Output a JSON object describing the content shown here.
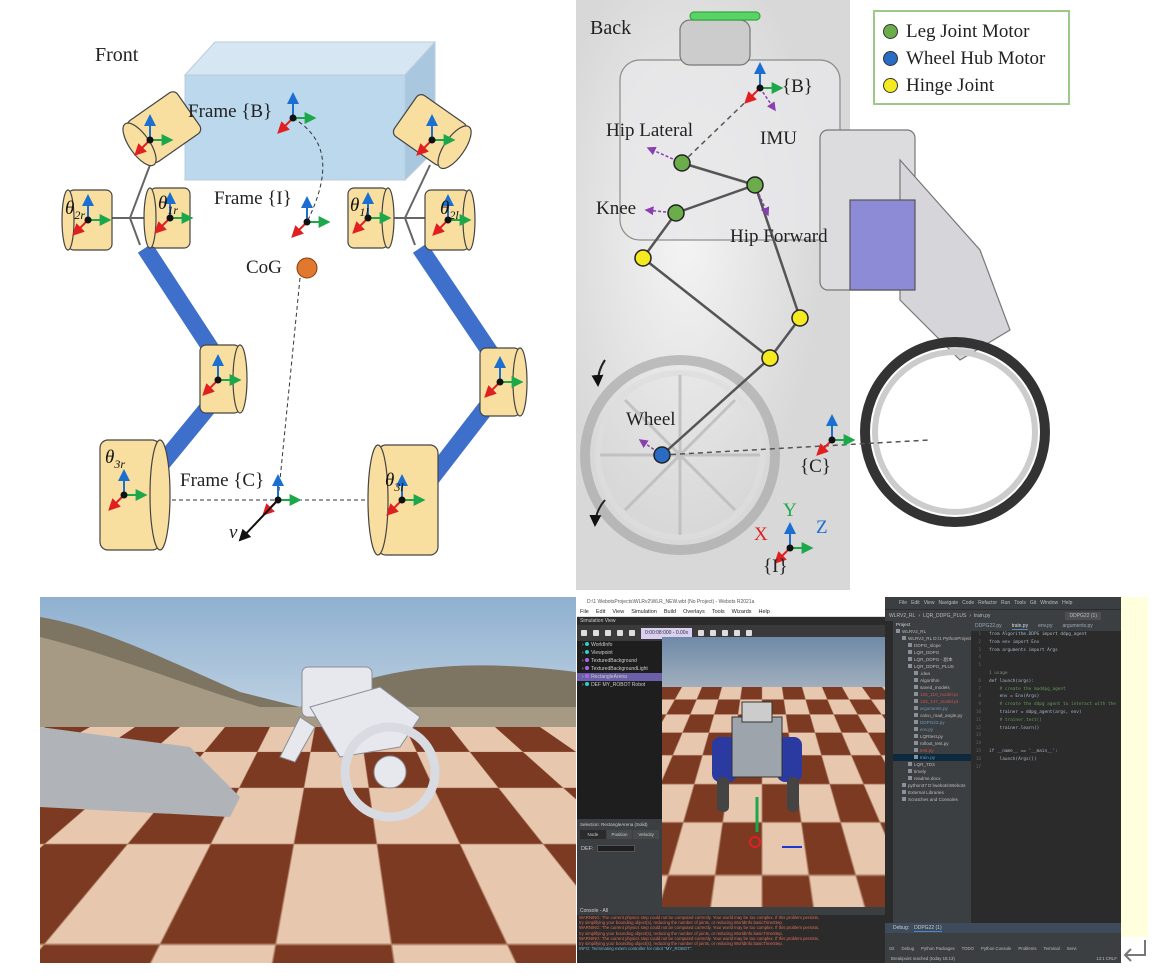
{
  "front_diagram": {
    "title": "Front",
    "frame_b": "Frame {B}",
    "frame_i": "Frame {I}",
    "frame_c": "Frame {C}",
    "cog": "CoG",
    "velocity": "v",
    "angles": [
      {
        "sym": "θ",
        "sub": "2r"
      },
      {
        "sym": "θ",
        "sub": "1r"
      },
      {
        "sym": "θ",
        "sub": "1l"
      },
      {
        "sym": "θ",
        "sub": "2l"
      },
      {
        "sym": "θ",
        "sub": "3r"
      },
      {
        "sym": "θ",
        "sub": "3l"
      }
    ],
    "colors": {
      "body": "#bcd8ec",
      "motor": "#f8dfa0",
      "link": "#3e6fca",
      "cog": "#e0782e"
    }
  },
  "back_diagram": {
    "title": "Back",
    "labels": {
      "hip_lateral": "Hip Lateral",
      "imu": "IMU",
      "knee": "Knee",
      "hip_forward": "Hip Forward",
      "wheel": "Wheel",
      "frame_b": "{B}",
      "frame_c": "{C}",
      "frame_i": "{I}",
      "x": "X",
      "y": "Y",
      "z": "Z"
    },
    "legend": [
      {
        "label": "Leg Joint Motor",
        "color": "#6aad4a"
      },
      {
        "label": "Wheel Hub Motor",
        "color": "#2a6bc4"
      },
      {
        "label": "Hinge Joint",
        "color": "#f5ea20"
      }
    ]
  },
  "webots": {
    "title": "D:\\1 WebotsProjects\\WLRv2\\WLR_NEW.wbt (No Project) - Webots R2021a",
    "menu": [
      "File",
      "Edit",
      "View",
      "Simulation",
      "Build",
      "Overlays",
      "Tools",
      "Wizards",
      "Help"
    ],
    "sim_view": "Simulation View",
    "time": "0:00:08:000 - 0.00x",
    "tree": [
      {
        "label": "WorldInfo",
        "color": "#3cc"
      },
      {
        "label": "Viewpoint",
        "color": "#3cc"
      },
      {
        "label": "TexturedBackground",
        "color": "#a6e"
      },
      {
        "label": "TexturedBackgroundLight",
        "color": "#a6e"
      },
      {
        "label": "RectangleArena",
        "color": "#a6e"
      },
      {
        "label": "DEF MY_ROBOT Robot",
        "color": "#3cc"
      }
    ],
    "selection": "Selection: RectangleArena (Solid)",
    "tabs": [
      "Node",
      "Position",
      "Velocity"
    ],
    "def_label": "DEF:",
    "console_title": "Console - All",
    "console": [
      "WARNING: The current physics step could not be computed correctly. Your world may be too complex. If this problem persists,",
      "try simplifying your bounding object(s), reducing the number of joints, or reducing WorldInfo.basicTimeStep.",
      "WARNING: The current physics step could not be computed correctly. Your world may be too complex. If this problem persists,",
      "try simplifying your bounding object(s), reducing the number of joints, or reducing WorldInfo.basicTimeStep.",
      "WARNING: The current physics step could not be computed correctly. Your world may be too complex. If this problem persists,",
      "try simplifying your bounding object(s), reducing the number of joints, or reducing WorldInfo.basicTimeStep."
    ],
    "console_info": "INFO: Terminating extern controller for robot \"MY_ROBOT\"."
  },
  "pycharm": {
    "title": "WLRV2_RL - train.py",
    "menu": [
      "File",
      "Edit",
      "View",
      "Navigate",
      "Code",
      "Refactor",
      "Run",
      "Tools",
      "Git",
      "Window",
      "Help"
    ],
    "breadcrumb": [
      "WLRV2_RL",
      "LQR_DDPG_PLUS",
      "train.py"
    ],
    "run_config": "DDPG22 (1)",
    "project_label": "Project",
    "tabs": [
      "DDPG22.py",
      "train.py",
      "env.py",
      "arguments.py"
    ],
    "tree": [
      {
        "label": "WLRV2_RL",
        "indent": 0
      },
      {
        "label": "WLRV2_RL  D:\\1 PythonProject",
        "indent": 1
      },
      {
        "label": "DDPG_slope",
        "indent": 2
      },
      {
        "label": "LQR_DDPG",
        "indent": 2
      },
      {
        "label": "LQR_DDPG - 副本",
        "indent": 2
      },
      {
        "label": "LQR_DDPG_PLUS",
        "indent": 2
      },
      {
        "label": ".idea",
        "indent": 3
      },
      {
        "label": "Algorithm",
        "indent": 3
      },
      {
        "label": "saved_models",
        "indent": 3
      },
      {
        "label": "125_110_model.pt",
        "indent": 3,
        "color": "#c75450"
      },
      {
        "label": "125_147_model.pt",
        "indent": 3,
        "color": "#c75450"
      },
      {
        "label": "arguments.py",
        "indent": 3,
        "color": "#6897bb"
      },
      {
        "label": "calcu_road_angle.py",
        "indent": 3
      },
      {
        "label": "DDPG22.py",
        "indent": 3,
        "color": "#6897bb"
      },
      {
        "label": "env.py",
        "indent": 3,
        "color": "#6897bb"
      },
      {
        "label": "LQRtest.py",
        "indent": 3
      },
      {
        "label": "rollout_test.py",
        "indent": 3
      },
      {
        "label": "test.py",
        "indent": 3,
        "color": "#c75450"
      },
      {
        "label": "train.py",
        "indent": 3,
        "color": "#6897bb",
        "selected": true
      },
      {
        "label": "LQR_TD3",
        "indent": 2
      },
      {
        "label": "timely",
        "indent": 2
      },
      {
        "label": "readme.docx",
        "indent": 2
      },
      {
        "label": "python37  D:\\webots\\Webots",
        "indent": 1
      },
      {
        "label": "External Libraries",
        "indent": 1
      },
      {
        "label": "Scratches and Consoles",
        "indent": 1
      }
    ],
    "code": [
      {
        "n": "1",
        "t": "from Algorithm.DDPG import ddpg_agent"
      },
      {
        "n": "2",
        "t": "from env import Env"
      },
      {
        "n": "3",
        "t": "from arguments import Args"
      },
      {
        "n": "4",
        "t": ""
      },
      {
        "n": "5",
        "t": ""
      },
      {
        "n": "",
        "t": "1 usage"
      },
      {
        "n": "6",
        "t": "def launch(args):"
      },
      {
        "n": "7",
        "t": "    # create the maddpg_agent"
      },
      {
        "n": "8",
        "t": "    env = Env(Args)"
      },
      {
        "n": "9",
        "t": "    # create the ddpg agent to interact with the"
      },
      {
        "n": "10",
        "t": "    trainer = ddpg_agent(args, env)"
      },
      {
        "n": "11",
        "t": "    # trainer.test()"
      },
      {
        "n": "12",
        "t": "    trainer.learn()"
      },
      {
        "n": "13",
        "t": ""
      },
      {
        "n": "14",
        "t": ""
      },
      {
        "n": "15",
        "t": "if __name__ == '__main__':"
      },
      {
        "n": "16",
        "t": "    launch(Args())"
      },
      {
        "n": "17",
        "t": ""
      }
    ],
    "code_breadcrumb": "if __name__ == '__main__'",
    "debug_label": "Debug:",
    "debug_config": "DDPG22 (1)",
    "tool_tabs": [
      "Git",
      "Debug",
      "Python Packages",
      "TODO",
      "Python Console",
      "Problems",
      "Terminal",
      "Servi"
    ],
    "status": "Breakpoint reached (today 15:13)",
    "position": "13:1  CRLF"
  }
}
